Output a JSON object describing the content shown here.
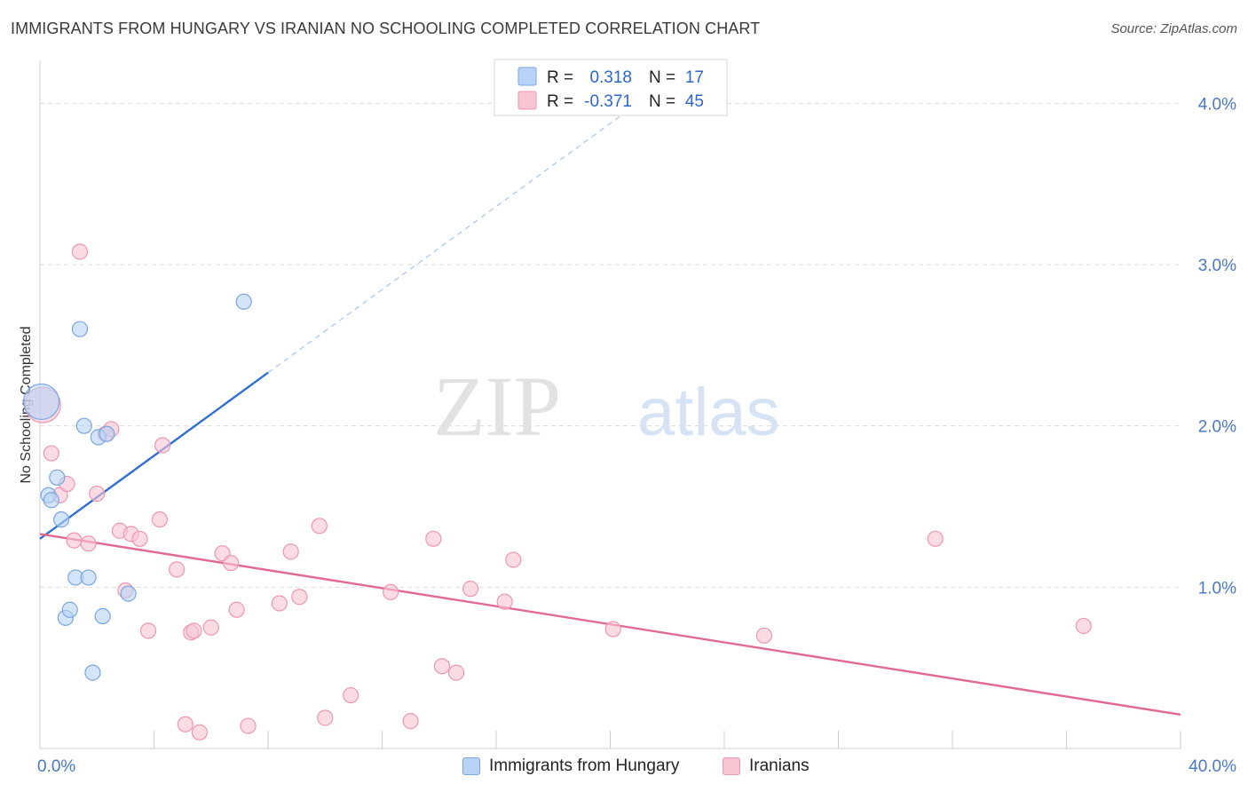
{
  "title": "IMMIGRANTS FROM HUNGARY VS IRANIAN NO SCHOOLING COMPLETED CORRELATION CHART",
  "source": "Source: ZipAtlas.com",
  "watermark": {
    "zip": "ZIP",
    "atlas": "atlas"
  },
  "colors": {
    "hungary_fill": "#b8d3f5",
    "hungary_stroke": "#7aa6e0",
    "hungary_line": "#2f6fcf",
    "iran_fill": "#f8c5d4",
    "iran_stroke": "#ee96b3",
    "iran_line": "#e06a95",
    "grid": "#dcdcdc",
    "tick_text": "#4a78c4"
  },
  "legend": {
    "rows": [
      {
        "r_label": "R =",
        "r_value": "0.318",
        "n_label": "N =",
        "n_value": "17"
      },
      {
        "r_label": "R =",
        "r_value": "-0.371",
        "n_label": "N =",
        "n_value": "45"
      }
    ]
  },
  "bottom_legend": {
    "hungary": "Immigrants from Hungary",
    "iran": "Iranians"
  },
  "chart_data": {
    "type": "scatter",
    "xlabel": "",
    "ylabel": "No Schooling Completed",
    "xlim": [
      0,
      40
    ],
    "ylim": [
      0,
      4.2
    ],
    "x_tick_labels": [
      "0.0%",
      "40.0%"
    ],
    "y_ticks": [
      1,
      2,
      3,
      4
    ],
    "y_tick_labels": [
      "1.0%",
      "2.0%",
      "3.0%",
      "4.0%"
    ],
    "grid": true,
    "legend_position": "top-center",
    "series": [
      {
        "name": "Immigrants from Hungary",
        "points": [
          {
            "x": 0.05,
            "y": 2.15,
            "big": true
          },
          {
            "x": 0.3,
            "y": 1.57
          },
          {
            "x": 0.4,
            "y": 1.54
          },
          {
            "x": 0.6,
            "y": 1.68
          },
          {
            "x": 0.75,
            "y": 1.42
          },
          {
            "x": 0.9,
            "y": 0.81
          },
          {
            "x": 1.05,
            "y": 0.86
          },
          {
            "x": 1.25,
            "y": 1.06
          },
          {
            "x": 1.4,
            "y": 2.6
          },
          {
            "x": 1.55,
            "y": 2.0
          },
          {
            "x": 1.7,
            "y": 1.06
          },
          {
            "x": 1.85,
            "y": 0.47
          },
          {
            "x": 2.05,
            "y": 1.93
          },
          {
            "x": 2.2,
            "y": 0.82
          },
          {
            "x": 2.35,
            "y": 1.95
          },
          {
            "x": 3.1,
            "y": 0.96
          },
          {
            "x": 7.15,
            "y": 2.77
          }
        ],
        "trend": {
          "x0": 0,
          "y0": 1.3,
          "x1": 8.0,
          "y1": 2.33,
          "dash_to_x": 40
        }
      },
      {
        "name": "Iranians",
        "points": [
          {
            "x": 0.1,
            "y": 2.13,
            "big": true
          },
          {
            "x": 0.4,
            "y": 1.83
          },
          {
            "x": 0.7,
            "y": 1.57
          },
          {
            "x": 0.95,
            "y": 1.64
          },
          {
            "x": 1.2,
            "y": 1.29
          },
          {
            "x": 1.4,
            "y": 3.08
          },
          {
            "x": 1.7,
            "y": 1.27
          },
          {
            "x": 2.0,
            "y": 1.58
          },
          {
            "x": 2.3,
            "y": 1.95
          },
          {
            "x": 2.5,
            "y": 1.98
          },
          {
            "x": 2.8,
            "y": 1.35
          },
          {
            "x": 3.0,
            "y": 0.98
          },
          {
            "x": 3.2,
            "y": 1.33
          },
          {
            "x": 3.5,
            "y": 1.3
          },
          {
            "x": 3.8,
            "y": 0.73
          },
          {
            "x": 4.2,
            "y": 1.42
          },
          {
            "x": 4.3,
            "y": 1.88
          },
          {
            "x": 4.8,
            "y": 1.11
          },
          {
            "x": 5.1,
            "y": 0.15
          },
          {
            "x": 5.3,
            "y": 0.72
          },
          {
            "x": 5.4,
            "y": 0.73
          },
          {
            "x": 5.6,
            "y": 0.1
          },
          {
            "x": 6.0,
            "y": 0.75
          },
          {
            "x": 6.4,
            "y": 1.21
          },
          {
            "x": 6.7,
            "y": 1.15
          },
          {
            "x": 6.9,
            "y": 0.86
          },
          {
            "x": 7.3,
            "y": 0.14
          },
          {
            "x": 8.4,
            "y": 0.9
          },
          {
            "x": 8.8,
            "y": 1.22
          },
          {
            "x": 9.1,
            "y": 0.94
          },
          {
            "x": 9.8,
            "y": 1.38
          },
          {
            "x": 10.0,
            "y": 0.19
          },
          {
            "x": 10.9,
            "y": 0.33
          },
          {
            "x": 12.3,
            "y": 0.97
          },
          {
            "x": 13.0,
            "y": 0.17
          },
          {
            "x": 13.8,
            "y": 1.3
          },
          {
            "x": 14.1,
            "y": 0.51
          },
          {
            "x": 14.6,
            "y": 0.47
          },
          {
            "x": 15.1,
            "y": 0.99
          },
          {
            "x": 16.3,
            "y": 0.91
          },
          {
            "x": 16.6,
            "y": 1.17
          },
          {
            "x": 20.1,
            "y": 0.74
          },
          {
            "x": 25.4,
            "y": 0.7
          },
          {
            "x": 31.4,
            "y": 1.3
          },
          {
            "x": 36.6,
            "y": 0.76
          }
        ],
        "trend": {
          "x0": 0,
          "y0": 1.33,
          "x1": 40,
          "y1": 0.21
        }
      }
    ]
  }
}
